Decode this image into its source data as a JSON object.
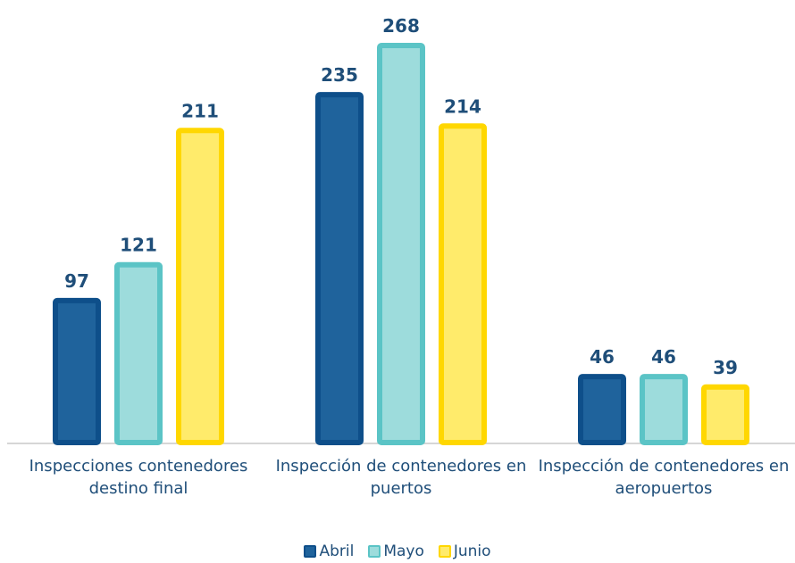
{
  "chart_data": {
    "type": "bar",
    "categories": [
      "Inspecciones contenedores destino final",
      "Inspección de contenedores en puertos",
      "Inspección de contenedores en aeropuertos"
    ],
    "series": [
      {
        "name": "Abril",
        "color": "#1f639c",
        "values": [
          97,
          235,
          46
        ]
      },
      {
        "name": "Mayo",
        "color": "#9ddcdc",
        "values": [
          121,
          268,
          46
        ]
      },
      {
        "name": "Junio",
        "color": "#ffeb6b",
        "values": [
          211,
          214,
          39
        ]
      }
    ]
  }
}
